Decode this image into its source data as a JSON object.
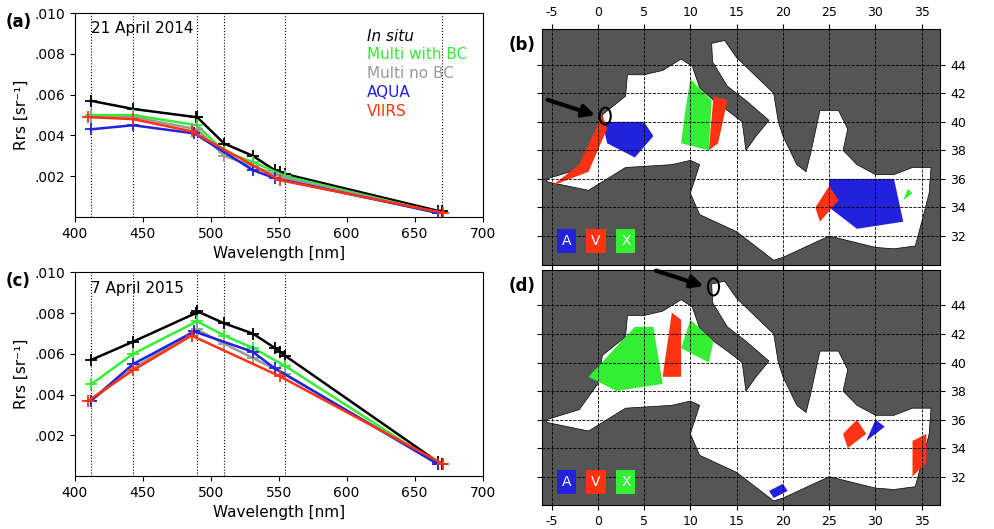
{
  "chart_data": [
    {
      "type": "line",
      "label": "(a)",
      "annotation": "21 April 2014",
      "x_label": "Wavelength [nm]",
      "y_label": "Rrs [sr⁻¹]",
      "xlim": [
        400,
        700
      ],
      "xticks": [
        400,
        450,
        500,
        550,
        600,
        650,
        700
      ],
      "ylim": [
        0,
        0.01
      ],
      "yticks": [
        {
          "value": 0.002,
          "label": ".002"
        },
        {
          "value": 0.004,
          "label": ".004"
        },
        {
          "value": 0.006,
          "label": ".006"
        },
        {
          "value": 0.008,
          "label": ".008"
        },
        {
          "value": 0.01,
          "label": ".010"
        }
      ],
      "reference_lines": [
        412,
        443,
        490,
        510,
        555,
        670
      ],
      "legend": "upper right",
      "marker": "+",
      "series": [
        {
          "name": "In situ",
          "color": "#000000",
          "x": [
            412,
            443,
            489,
            490,
            510,
            531,
            547,
            551,
            555,
            667,
            670
          ],
          "values": [
            0.0057,
            0.0053,
            0.0049,
            0.0049,
            0.0036,
            0.003,
            0.0023,
            0.0022,
            0.0021,
            0.0003,
            0.0003
          ]
        },
        {
          "name": "Multi with BC",
          "color": "#33ee33",
          "x": [
            412,
            443,
            490,
            510,
            531,
            555,
            667
          ],
          "values": [
            0.005,
            0.005,
            0.0045,
            0.0032,
            0.0027,
            0.002,
            0.0002
          ]
        },
        {
          "name": "Multi no BC",
          "color": "#999999",
          "x": [
            412,
            443,
            490,
            510,
            531,
            555,
            667
          ],
          "values": [
            0.0049,
            0.0049,
            0.0043,
            0.003,
            0.0025,
            0.0019,
            0.0002
          ]
        },
        {
          "name": "AQUA",
          "color": "#2222dd",
          "x": [
            412,
            443,
            488,
            531,
            547,
            667
          ],
          "values": [
            0.0043,
            0.0045,
            0.0041,
            0.0023,
            0.0019,
            0.0002
          ]
        },
        {
          "name": "VIIRS",
          "color": "#ff3311",
          "x": [
            410,
            443,
            486,
            551,
            671
          ],
          "values": [
            0.0049,
            0.0048,
            0.0042,
            0.0018,
            0.0002
          ]
        }
      ]
    },
    {
      "type": "map",
      "label": "(b)",
      "xlim": [
        -6,
        37
      ],
      "xticks": [
        -5,
        0,
        5,
        10,
        15,
        20,
        25,
        30,
        35
      ],
      "ylim": [
        30,
        46.5
      ],
      "yticks": [
        32,
        34,
        36,
        38,
        40,
        42,
        44
      ],
      "grid": true,
      "tick_labels_side": "top",
      "station": [
        0.8,
        40.4
      ],
      "legend_boxes": [
        {
          "label": "A",
          "color": "#2222dd"
        },
        {
          "label": "V",
          "color": "#ff3311"
        },
        {
          "label": "X",
          "color": "#33ee33"
        }
      ],
      "sea_outline": [
        [
          -5.5,
          36.0
        ],
        [
          -2,
          36.7
        ],
        [
          0,
          38.5
        ],
        [
          0.5,
          40.5
        ],
        [
          3,
          41.8
        ],
        [
          3.2,
          43.3
        ],
        [
          5,
          43.3
        ],
        [
          7,
          43.6
        ],
        [
          9,
          44.4
        ],
        [
          10.2,
          43.9
        ],
        [
          11,
          42.4
        ],
        [
          12.5,
          41.5
        ],
        [
          14,
          40.8
        ],
        [
          15.6,
          40.0
        ],
        [
          16,
          38.0
        ],
        [
          17.1,
          39.0
        ],
        [
          18.5,
          40.1
        ],
        [
          16,
          41.5
        ],
        [
          14,
          42.5
        ],
        [
          12.4,
          44.2
        ],
        [
          12.3,
          45.5
        ],
        [
          13.7,
          45.7
        ],
        [
          15,
          44.5
        ],
        [
          19,
          42
        ],
        [
          19.5,
          40
        ],
        [
          20,
          39
        ],
        [
          21.5,
          37
        ],
        [
          22.5,
          36.5
        ],
        [
          23,
          37.8
        ],
        [
          24,
          40.8
        ],
        [
          26,
          40.8
        ],
        [
          27,
          39.5
        ],
        [
          26.5,
          38
        ],
        [
          28,
          37
        ],
        [
          30,
          36.3
        ],
        [
          32,
          36.3
        ],
        [
          34,
          36.8
        ],
        [
          36,
          36.8
        ],
        [
          35.8,
          35
        ],
        [
          35,
          33
        ],
        [
          34.3,
          31.3
        ],
        [
          32,
          31.1
        ],
        [
          30,
          31.2
        ],
        [
          25,
          32
        ],
        [
          20,
          30.5
        ],
        [
          19,
          30.3
        ],
        [
          15,
          32.3
        ],
        [
          11,
          33.5
        ],
        [
          10,
          35
        ],
        [
          11,
          37
        ],
        [
          10,
          37.3
        ],
        [
          8,
          37
        ],
        [
          3,
          36.8
        ],
        [
          -1,
          35.2
        ],
        [
          -5.5,
          35.8
        ]
      ],
      "coverage": [
        {
          "sensor": "A",
          "polygon": [
            [
              0.5,
              40
            ],
            [
              5,
              40
            ],
            [
              6,
              39
            ],
            [
              4,
              37.5
            ],
            [
              1,
              38.5
            ]
          ]
        },
        {
          "sensor": "A",
          "polygon": [
            [
              25,
              36
            ],
            [
              32,
              36
            ],
            [
              33,
              33
            ],
            [
              28,
              32.5
            ],
            [
              25,
              34
            ]
          ]
        },
        {
          "sensor": "V",
          "polygon": [
            [
              -5,
              35.5
            ],
            [
              -1,
              36.5
            ],
            [
              1,
              39.5
            ],
            [
              0.5,
              40.5
            ],
            [
              -2,
              37
            ]
          ]
        },
        {
          "sensor": "V",
          "polygon": [
            [
              12,
              38
            ],
            [
              13,
              38.5
            ],
            [
              14,
              41.5
            ],
            [
              12.5,
              41.8
            ]
          ]
        },
        {
          "sensor": "V",
          "polygon": [
            [
              24,
              33
            ],
            [
              26,
              34.5
            ],
            [
              25,
              35.5
            ],
            [
              23.5,
              34
            ]
          ]
        },
        {
          "sensor": "X",
          "polygon": [
            [
              9,
              38.5
            ],
            [
              12,
              38
            ],
            [
              12.3,
              41.5
            ],
            [
              10,
              43
            ],
            [
              9.5,
              41
            ]
          ]
        },
        {
          "sensor": "X",
          "polygon": [
            [
              33,
              34.5
            ],
            [
              34,
              35
            ],
            [
              33.5,
              35.3
            ]
          ]
        }
      ]
    },
    {
      "type": "line",
      "label": "(c)",
      "annotation": "7 April 2015",
      "x_label": "Wavelength [nm]",
      "y_label": "Rrs [sr⁻¹]",
      "xlim": [
        400,
        700
      ],
      "xticks": [
        400,
        450,
        500,
        550,
        600,
        650,
        700
      ],
      "ylim": [
        0,
        0.01
      ],
      "yticks": [
        {
          "value": 0.002,
          "label": ".002"
        },
        {
          "value": 0.004,
          "label": ".004"
        },
        {
          "value": 0.006,
          "label": ".006"
        },
        {
          "value": 0.008,
          "label": ".008"
        },
        {
          "value": 0.01,
          "label": ".010"
        }
      ],
      "reference_lines": [
        412,
        443,
        490,
        510,
        555
      ],
      "marker": "+",
      "series": [
        {
          "name": "In situ",
          "color": "#000000",
          "x": [
            412,
            443,
            489,
            490,
            510,
            531,
            547,
            551,
            555,
            667,
            670
          ],
          "values": [
            0.0057,
            0.0066,
            0.008,
            0.0081,
            0.0075,
            0.007,
            0.0063,
            0.0061,
            0.0059,
            0.0007,
            0.0006
          ]
        },
        {
          "name": "Multi with BC",
          "color": "#33ee33",
          "x": [
            412,
            443,
            490,
            510,
            531,
            555,
            667
          ],
          "values": [
            0.0045,
            0.006,
            0.0076,
            0.0069,
            0.0063,
            0.0054,
            0.0006
          ]
        },
        {
          "name": "Multi no BC",
          "color": "#999999",
          "x": [
            412,
            443,
            490,
            510,
            531,
            555,
            667
          ],
          "values": [
            0.0037,
            0.0053,
            0.0072,
            0.0065,
            0.0058,
            0.005,
            0.0006
          ]
        },
        {
          "name": "AQUA",
          "color": "#2222dd",
          "x": [
            412,
            443,
            488,
            531,
            547,
            667
          ],
          "values": [
            0.0037,
            0.0055,
            0.0071,
            0.0061,
            0.0053,
            0.0006
          ]
        },
        {
          "name": "VIIRS",
          "color": "#ff3311",
          "x": [
            410,
            443,
            486,
            551,
            671
          ],
          "values": [
            0.0037,
            0.0052,
            0.0069,
            0.0049,
            0.0006
          ]
        }
      ]
    },
    {
      "type": "map",
      "label": "(d)",
      "xlim": [
        -6,
        37
      ],
      "xticks": [
        -5,
        0,
        5,
        10,
        15,
        20,
        25,
        30,
        35
      ],
      "ylim": [
        30,
        46.5
      ],
      "yticks": [
        32,
        34,
        36,
        38,
        40,
        42,
        44
      ],
      "grid": true,
      "tick_labels_side": "bottom",
      "station": [
        12.5,
        45.3
      ],
      "legend_boxes": [
        {
          "label": "A",
          "color": "#2222dd"
        },
        {
          "label": "V",
          "color": "#ff3311"
        },
        {
          "label": "X",
          "color": "#33ee33"
        }
      ],
      "sea_outline": [
        [
          -5.5,
          36.0
        ],
        [
          -2,
          36.7
        ],
        [
          0,
          38.5
        ],
        [
          0.5,
          40.5
        ],
        [
          3,
          41.8
        ],
        [
          3.2,
          43.3
        ],
        [
          5,
          43.3
        ],
        [
          7,
          43.6
        ],
        [
          9,
          44.4
        ],
        [
          10.2,
          43.9
        ],
        [
          11,
          42.4
        ],
        [
          12.5,
          41.5
        ],
        [
          14,
          40.8
        ],
        [
          15.6,
          40.0
        ],
        [
          16,
          38.0
        ],
        [
          17.1,
          39.0
        ],
        [
          18.5,
          40.1
        ],
        [
          16,
          41.5
        ],
        [
          14,
          42.5
        ],
        [
          12.4,
          44.2
        ],
        [
          12.3,
          45.5
        ],
        [
          13.7,
          45.7
        ],
        [
          15,
          44.5
        ],
        [
          19,
          42
        ],
        [
          19.5,
          40
        ],
        [
          20,
          39
        ],
        [
          21.5,
          37
        ],
        [
          22.5,
          36.5
        ],
        [
          23,
          37.8
        ],
        [
          24,
          40.8
        ],
        [
          26,
          40.8
        ],
        [
          27,
          39.5
        ],
        [
          26.5,
          38
        ],
        [
          28,
          37
        ],
        [
          30,
          36.3
        ],
        [
          32,
          36.3
        ],
        [
          34,
          36.8
        ],
        [
          36,
          36.8
        ],
        [
          35.8,
          35
        ],
        [
          35,
          33
        ],
        [
          34.3,
          31.3
        ],
        [
          32,
          31.1
        ],
        [
          30,
          31.2
        ],
        [
          25,
          32
        ],
        [
          20,
          30.5
        ],
        [
          19,
          30.3
        ],
        [
          15,
          32.3
        ],
        [
          11,
          33.5
        ],
        [
          10,
          35
        ],
        [
          11,
          37
        ],
        [
          10,
          37.3
        ],
        [
          8,
          37
        ],
        [
          3,
          36.8
        ],
        [
          -1,
          35.2
        ],
        [
          -5.5,
          35.8
        ]
      ],
      "coverage": [
        {
          "sensor": "X",
          "polygon": [
            [
              -1,
              39
            ],
            [
              4,
              42.5
            ],
            [
              6,
              42.5
            ],
            [
              7,
              38.5
            ],
            [
              2,
              38
            ]
          ]
        },
        {
          "sensor": "X",
          "polygon": [
            [
              9,
              41
            ],
            [
              12,
              40
            ],
            [
              12.5,
              41.5
            ],
            [
              10,
              43
            ]
          ]
        },
        {
          "sensor": "V",
          "polygon": [
            [
              7,
              39
            ],
            [
              8,
              43.5
            ],
            [
              9,
              43
            ],
            [
              9,
              39
            ]
          ]
        },
        {
          "sensor": "V",
          "polygon": [
            [
              34,
              32
            ],
            [
              35.5,
              33
            ],
            [
              35.5,
              35
            ],
            [
              34,
              34.5
            ]
          ]
        },
        {
          "sensor": "V",
          "polygon": [
            [
              27,
              34
            ],
            [
              29,
              35
            ],
            [
              28,
              36
            ],
            [
              26.5,
              35
            ]
          ]
        },
        {
          "sensor": "A",
          "polygon": [
            [
              19,
              30.5
            ],
            [
              20.5,
              31
            ],
            [
              20,
              31.5
            ],
            [
              18.5,
              31
            ]
          ]
        },
        {
          "sensor": "A",
          "polygon": [
            [
              29,
              34.5
            ],
            [
              31,
              35.5
            ],
            [
              30,
              36
            ]
          ]
        }
      ]
    }
  ]
}
